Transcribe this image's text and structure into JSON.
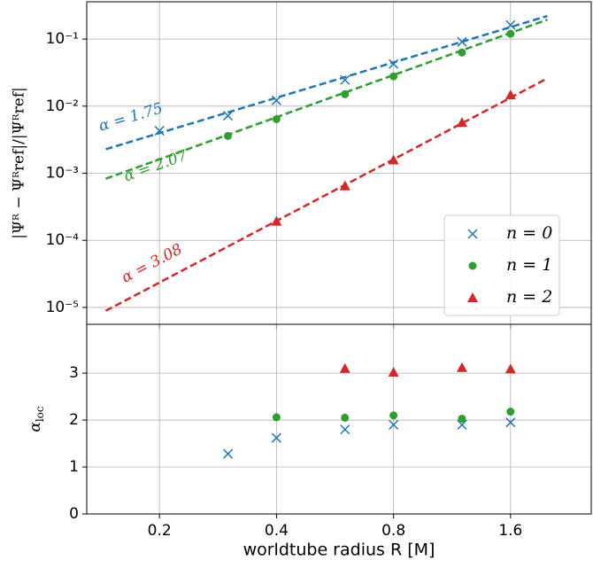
{
  "chart_data": [
    {
      "type": "scatter",
      "log_x": true,
      "log_y": true,
      "grid": true,
      "ylabel": "|Ψᴿ − Ψᴿref|/|Ψᴿref|",
      "xlim": [
        0.13,
        2.58
      ],
      "xticks": [
        0.2,
        0.4,
        0.8,
        1.6
      ],
      "ylim": [
        5.6e-06,
        0.36
      ],
      "yticks": [
        {
          "value": 1e-05,
          "label": "10⁻⁵"
        },
        {
          "value": 0.0001,
          "label": "10⁻⁴"
        },
        {
          "value": 0.001,
          "label": "10⁻³"
        },
        {
          "value": 0.01,
          "label": "10⁻²"
        },
        {
          "value": 0.1,
          "label": "10⁻¹"
        }
      ],
      "legend": "lower right",
      "series": [
        {
          "name": "n = 0",
          "color": "#1f77b4",
          "marker": "x",
          "x": [
            0.2,
            0.3,
            0.4,
            0.6,
            0.8,
            1.2,
            1.6
          ],
          "values": [
            0.0043,
            0.0072,
            0.0122,
            0.0246,
            0.0426,
            0.091,
            0.162
          ]
        },
        {
          "name": "n = 1",
          "color": "#2ca02c",
          "marker": "o",
          "x": [
            0.3,
            0.4,
            0.6,
            0.8,
            1.2,
            1.6
          ],
          "values": [
            0.0036,
            0.0064,
            0.0151,
            0.0278,
            0.063,
            0.12
          ]
        },
        {
          "name": "n = 2",
          "color": "#d62728",
          "marker": "^",
          "x": [
            0.4,
            0.6,
            0.8,
            1.2,
            1.6
          ],
          "values": [
            0.000193,
            0.00065,
            0.00158,
            0.0057,
            0.0147
          ]
        }
      ],
      "fits": [
        {
          "color": "#1f77b4",
          "x": [
            0.1455,
            1.99
          ],
          "values": [
            0.00228,
            0.221
          ]
        },
        {
          "color": "#2ca02c",
          "x": [
            0.1455,
            1.99
          ],
          "values": [
            0.00083,
            0.195
          ]
        },
        {
          "color": "#d62728",
          "x": [
            0.1455,
            1.99
          ],
          "values": [
            8.9e-06,
            0.026
          ]
        }
      ],
      "annotations": [
        {
          "text": "α = 1.75",
          "color": "#1f77b4"
        },
        {
          "text": "α = 2.07",
          "color": "#2ca02c"
        },
        {
          "text": "α = 3.08",
          "color": "#d62728"
        }
      ]
    },
    {
      "type": "scatter",
      "log_x": true,
      "grid": true,
      "xlabel": "worldtube radius R [M]",
      "ylabel": {
        "base": "α",
        "sub": "loc"
      },
      "xlim": [
        0.13,
        2.58
      ],
      "xticks": [
        0.2,
        0.4,
        0.8,
        1.6
      ],
      "ylim": [
        0,
        4.04
      ],
      "yticks": [
        0,
        1,
        2,
        3
      ],
      "series": [
        {
          "color": "#1f77b4",
          "marker": "x",
          "x": [
            0.3,
            0.4,
            0.6,
            0.8,
            1.2,
            1.6
          ],
          "values": [
            1.28,
            1.62,
            1.8,
            1.9,
            1.9,
            1.95
          ]
        },
        {
          "color": "#2ca02c",
          "marker": "o",
          "x": [
            0.4,
            0.6,
            0.8,
            1.2,
            1.6
          ],
          "values": [
            2.06,
            2.05,
            2.1,
            2.03,
            2.18
          ]
        },
        {
          "color": "#d62728",
          "marker": "^",
          "x": [
            0.6,
            0.8,
            1.2,
            1.6
          ],
          "values": [
            3.1,
            3.02,
            3.12,
            3.09
          ]
        }
      ]
    }
  ]
}
